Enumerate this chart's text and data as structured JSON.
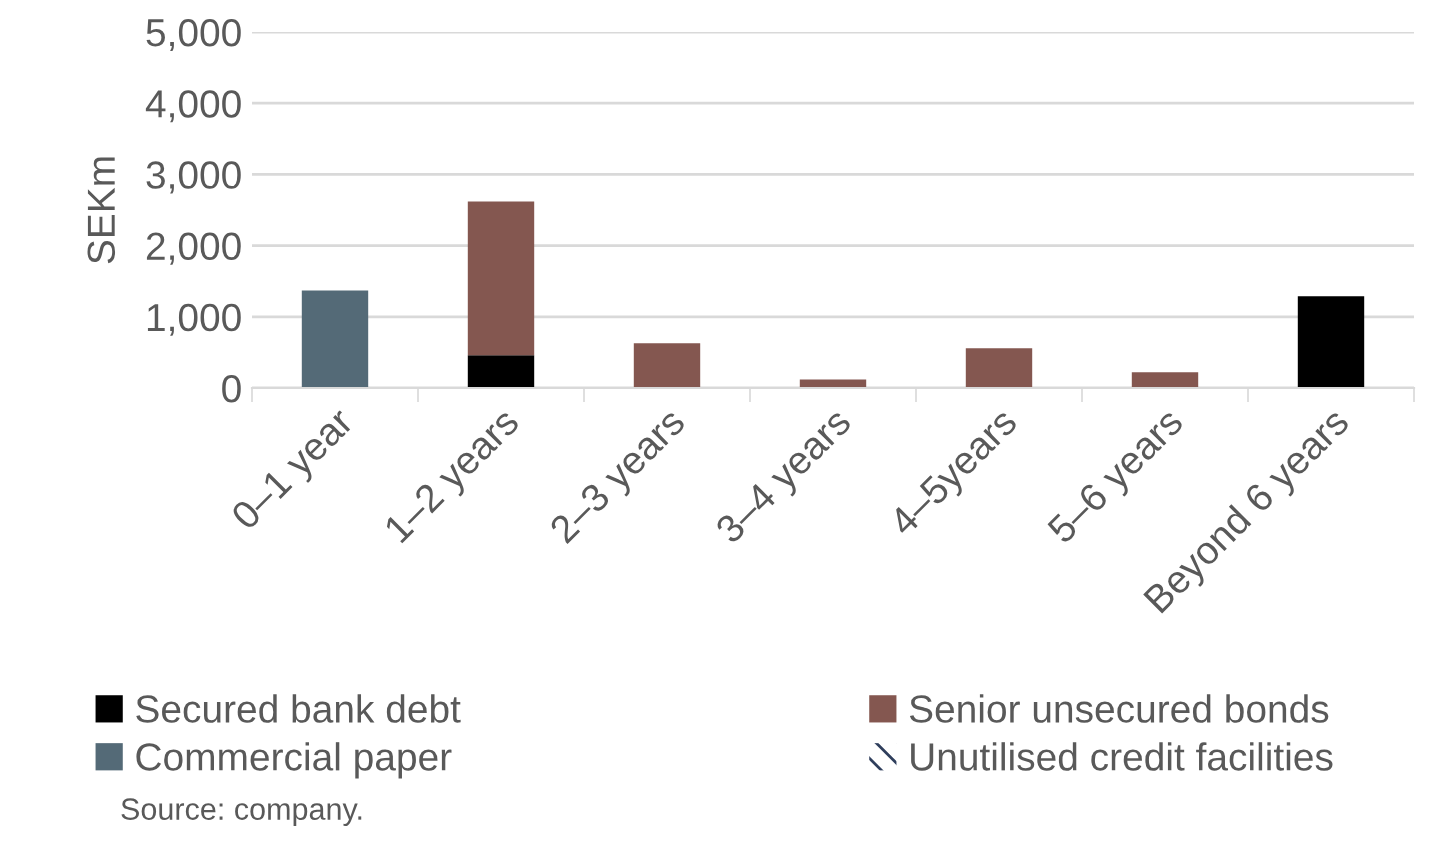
{
  "chart_data": {
    "type": "bar",
    "stacked": true,
    "ylabel": "SEKm",
    "categories": [
      "0–1 year",
      "1–2 years",
      "2–3 years",
      "3–4 years",
      "4–5years",
      "5–6 years",
      "Beyond 6 years"
    ],
    "series": [
      {
        "name": "Secured bank debt",
        "color": "#000000",
        "values": [
          null,
          460,
          null,
          null,
          null,
          null,
          1290
        ]
      },
      {
        "name": "Senior unsecured bonds",
        "color": "#845750",
        "values": [
          null,
          2160,
          630,
          120,
          560,
          220,
          null
        ]
      },
      {
        "name": "Commercial paper",
        "color": "#546a77",
        "values": [
          1370,
          null,
          null,
          null,
          null,
          null,
          null
        ]
      },
      {
        "name": "Unutilised credit facilities",
        "color": "#2f3e5c",
        "values": [
          null,
          null,
          null,
          null,
          null,
          null,
          null
        ]
      }
    ],
    "ylim": [
      0,
      5000
    ],
    "yticks": [
      {
        "value": 0,
        "label": "0"
      },
      {
        "value": 1000,
        "label": "1,000"
      },
      {
        "value": 2000,
        "label": "2,000"
      },
      {
        "value": 3000,
        "label": "3,000"
      },
      {
        "value": 4000,
        "label": "4,000"
      },
      {
        "value": 5000,
        "label": "5,000"
      }
    ],
    "grid": "y",
    "legend": "bottom",
    "annotations": [
      "Source: company."
    ]
  }
}
